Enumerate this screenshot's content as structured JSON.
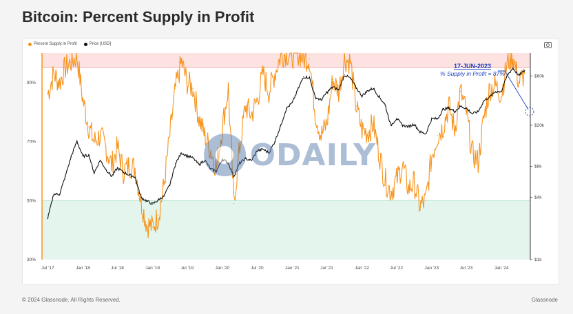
{
  "title": "Bitcoin: Percent Supply in Profit",
  "footer": {
    "copyright": "© 2024 Glassnode. All Rights Reserved.",
    "brand": "Glassnode"
  },
  "watermark": {
    "text": "ODAILY"
  },
  "colors": {
    "supply": "#f7931a",
    "price": "#111111",
    "upper_band": "#fde2e2",
    "lower_band": "#e3f5ec",
    "annotation": "#1a3fbf"
  },
  "icons": {
    "export": "camera-icon"
  },
  "chart_data": {
    "type": "line",
    "legend": [
      {
        "name": "Percent Supply in Profit",
        "color": "#f7931a"
      },
      {
        "name": "Price [USD]",
        "color": "#111111"
      }
    ],
    "legend_position": "top-left",
    "x_tick_labels": [
      "Jul '17",
      "Jan '18",
      "Jul '18",
      "Jan '19",
      "Jul '19",
      "Jan '20",
      "Jul '20",
      "Jan '21",
      "Jul '21",
      "Jan '22",
      "Jul '22",
      "Jan '23",
      "Jul '23",
      "Jan '24"
    ],
    "x_range": [
      "2017-06-01",
      "2024-05-31"
    ],
    "y_left": {
      "ticks": [
        "30%",
        "50%",
        "70%",
        "90%"
      ],
      "range": [
        30,
        100
      ]
    },
    "y_right": {
      "scale": "log",
      "ticks": [
        "$1k",
        "$4k",
        "$8k",
        "$20k",
        "$60k"
      ],
      "range": [
        1000,
        100000
      ]
    },
    "bands": [
      {
        "from": 95,
        "to": 100,
        "color": "#fde2e2"
      },
      {
        "from": 30,
        "to": 50,
        "color": "#e3f5ec"
      }
    ],
    "annotation": {
      "date": "17-JUN-2023",
      "text": "% Supply in Profit = 87%"
    },
    "series": [
      {
        "name": "Percent Supply in Profit",
        "axis": "left",
        "points": [
          [
            "2017-07-01",
            86
          ],
          [
            "2017-08-01",
            93
          ],
          [
            "2017-09-01",
            90
          ],
          [
            "2017-10-01",
            95
          ],
          [
            "2017-11-01",
            97
          ],
          [
            "2017-12-01",
            99
          ],
          [
            "2018-01-01",
            84
          ],
          [
            "2018-02-01",
            75
          ],
          [
            "2018-03-01",
            70
          ],
          [
            "2018-04-01",
            72
          ],
          [
            "2018-05-01",
            68
          ],
          [
            "2018-06-01",
            62
          ],
          [
            "2018-07-01",
            68
          ],
          [
            "2018-08-01",
            60
          ],
          [
            "2018-09-01",
            62
          ],
          [
            "2018-10-01",
            61
          ],
          [
            "2018-11-01",
            50
          ],
          [
            "2018-12-01",
            42
          ],
          [
            "2019-01-01",
            41
          ],
          [
            "2019-02-01",
            45
          ],
          [
            "2019-03-01",
            55
          ],
          [
            "2019-04-01",
            72
          ],
          [
            "2019-05-01",
            88
          ],
          [
            "2019-06-01",
            97
          ],
          [
            "2019-07-01",
            90
          ],
          [
            "2019-08-01",
            88
          ],
          [
            "2019-09-01",
            78
          ],
          [
            "2019-10-01",
            72
          ],
          [
            "2019-11-01",
            67
          ],
          [
            "2019-12-01",
            61
          ],
          [
            "2020-01-01",
            75
          ],
          [
            "2020-02-01",
            88
          ],
          [
            "2020-03-01",
            49
          ],
          [
            "2020-04-01",
            68
          ],
          [
            "2020-05-01",
            82
          ],
          [
            "2020-06-01",
            79
          ],
          [
            "2020-07-01",
            84
          ],
          [
            "2020-08-01",
            93
          ],
          [
            "2020-09-01",
            87
          ],
          [
            "2020-10-01",
            93
          ],
          [
            "2020-11-01",
            99
          ],
          [
            "2020-12-01",
            100
          ],
          [
            "2021-01-01",
            99
          ],
          [
            "2021-02-01",
            100
          ],
          [
            "2021-03-01",
            98
          ],
          [
            "2021-04-01",
            98
          ],
          [
            "2021-05-01",
            80
          ],
          [
            "2021-06-01",
            72
          ],
          [
            "2021-07-01",
            76
          ],
          [
            "2021-08-01",
            91
          ],
          [
            "2021-09-01",
            87
          ],
          [
            "2021-10-01",
            98
          ],
          [
            "2021-11-01",
            97
          ],
          [
            "2021-12-01",
            82
          ],
          [
            "2022-01-01",
            74
          ],
          [
            "2022-02-01",
            73
          ],
          [
            "2022-03-01",
            76
          ],
          [
            "2022-04-01",
            66
          ],
          [
            "2022-05-01",
            57
          ],
          [
            "2022-06-01",
            53
          ],
          [
            "2022-07-01",
            57
          ],
          [
            "2022-08-01",
            62
          ],
          [
            "2022-09-01",
            54
          ],
          [
            "2022-10-01",
            56
          ],
          [
            "2022-11-01",
            48
          ],
          [
            "2022-12-01",
            50
          ],
          [
            "2023-01-01",
            65
          ],
          [
            "2023-02-01",
            72
          ],
          [
            "2023-03-01",
            75
          ],
          [
            "2023-04-01",
            82
          ],
          [
            "2023-05-01",
            74
          ],
          [
            "2023-06-01",
            87
          ],
          [
            "2023-07-01",
            80
          ],
          [
            "2023-08-01",
            66
          ],
          [
            "2023-09-01",
            63
          ],
          [
            "2023-10-01",
            78
          ],
          [
            "2023-11-01",
            88
          ],
          [
            "2023-12-01",
            89
          ],
          [
            "2024-01-01",
            86
          ],
          [
            "2024-02-01",
            97
          ],
          [
            "2024-03-01",
            99
          ],
          [
            "2024-04-01",
            90
          ],
          [
            "2024-05-01",
            93
          ]
        ]
      },
      {
        "name": "Price [USD]",
        "axis": "right",
        "points": [
          [
            "2017-07-01",
            2500
          ],
          [
            "2017-08-01",
            4300
          ],
          [
            "2017-09-01",
            4300
          ],
          [
            "2017-10-01",
            6400
          ],
          [
            "2017-11-01",
            10000
          ],
          [
            "2017-12-01",
            14000
          ],
          [
            "2018-01-01",
            10000
          ],
          [
            "2018-02-01",
            10300
          ],
          [
            "2018-03-01",
            6900
          ],
          [
            "2018-04-01",
            9200
          ],
          [
            "2018-05-01",
            7500
          ],
          [
            "2018-06-01",
            6400
          ],
          [
            "2018-07-01",
            7700
          ],
          [
            "2018-08-01",
            7000
          ],
          [
            "2018-09-01",
            6600
          ],
          [
            "2018-10-01",
            6300
          ],
          [
            "2018-11-01",
            4000
          ],
          [
            "2018-12-01",
            3700
          ],
          [
            "2019-01-01",
            3450
          ],
          [
            "2019-02-01",
            3800
          ],
          [
            "2019-03-01",
            4100
          ],
          [
            "2019-04-01",
            5300
          ],
          [
            "2019-05-01",
            8500
          ],
          [
            "2019-06-01",
            10800
          ],
          [
            "2019-07-01",
            10100
          ],
          [
            "2019-08-01",
            9600
          ],
          [
            "2019-09-01",
            8300
          ],
          [
            "2019-10-01",
            9200
          ],
          [
            "2019-11-01",
            7500
          ],
          [
            "2019-12-01",
            7200
          ],
          [
            "2020-01-01",
            9400
          ],
          [
            "2020-02-01",
            8600
          ],
          [
            "2020-03-01",
            6400
          ],
          [
            "2020-04-01",
            8600
          ],
          [
            "2020-05-01",
            9500
          ],
          [
            "2020-06-01",
            9100
          ],
          [
            "2020-07-01",
            11300
          ],
          [
            "2020-08-01",
            11700
          ],
          [
            "2020-09-01",
            10800
          ],
          [
            "2020-10-01",
            13800
          ],
          [
            "2020-11-01",
            19700
          ],
          [
            "2020-12-01",
            29000
          ],
          [
            "2021-01-01",
            33000
          ],
          [
            "2021-02-01",
            45000
          ],
          [
            "2021-03-01",
            58800
          ],
          [
            "2021-04-01",
            57700
          ],
          [
            "2021-05-01",
            37300
          ],
          [
            "2021-06-01",
            35000
          ],
          [
            "2021-07-01",
            41500
          ],
          [
            "2021-08-01",
            47100
          ],
          [
            "2021-09-01",
            43800
          ],
          [
            "2021-10-01",
            61300
          ],
          [
            "2021-11-01",
            57000
          ],
          [
            "2021-12-01",
            46300
          ],
          [
            "2022-01-01",
            38500
          ],
          [
            "2022-02-01",
            43200
          ],
          [
            "2022-03-01",
            45500
          ],
          [
            "2022-04-01",
            37700
          ],
          [
            "2022-05-01",
            31800
          ],
          [
            "2022-06-01",
            19900
          ],
          [
            "2022-07-01",
            23300
          ],
          [
            "2022-08-01",
            20000
          ],
          [
            "2022-09-01",
            19400
          ],
          [
            "2022-10-01",
            20500
          ],
          [
            "2022-11-01",
            17200
          ],
          [
            "2022-12-01",
            16500
          ],
          [
            "2023-01-01",
            23100
          ],
          [
            "2023-02-01",
            23100
          ],
          [
            "2023-03-01",
            28500
          ],
          [
            "2023-04-01",
            29300
          ],
          [
            "2023-05-01",
            27200
          ],
          [
            "2023-06-01",
            30500
          ],
          [
            "2023-07-01",
            29200
          ],
          [
            "2023-08-01",
            25900
          ],
          [
            "2023-09-01",
            27000
          ],
          [
            "2023-10-01",
            34500
          ],
          [
            "2023-11-01",
            37700
          ],
          [
            "2023-12-01",
            42300
          ],
          [
            "2024-01-01",
            42600
          ],
          [
            "2024-02-01",
            61200
          ],
          [
            "2024-03-01",
            71300
          ],
          [
            "2024-04-01",
            60600
          ],
          [
            "2024-05-01",
            67500
          ]
        ]
      }
    ]
  }
}
